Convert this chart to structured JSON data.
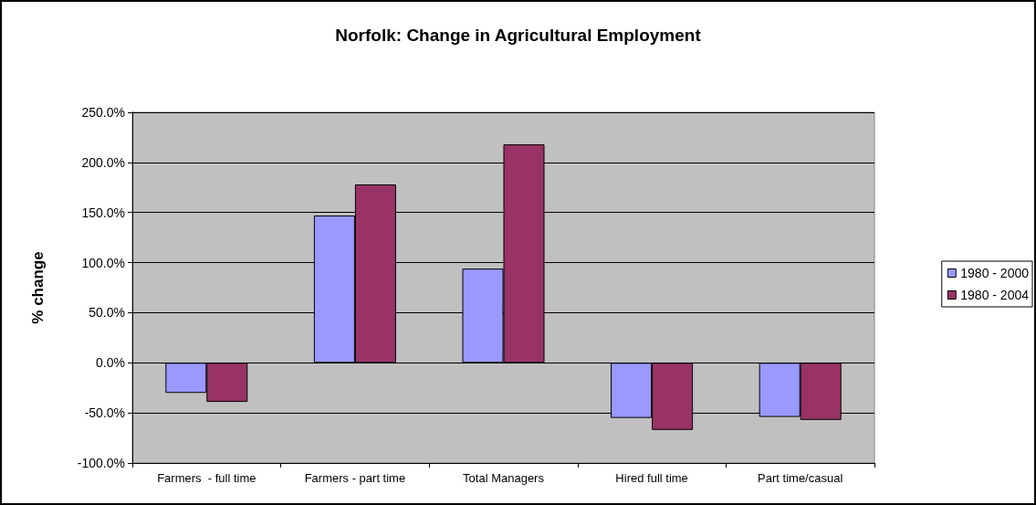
{
  "chart_data": {
    "type": "bar",
    "title": "Norfolk: Change in Agricultural Employment",
    "ylabel": "% change",
    "categories": [
      "Farmers  - full time",
      "Farmers - part time",
      "Total Managers",
      "Hired full time",
      "Part time/casual"
    ],
    "series": [
      {
        "name": "1980 - 2000",
        "color": "#9999ff",
        "values": [
          -30,
          147,
          94,
          -55,
          -54
        ]
      },
      {
        "name": "1980 - 2004",
        "color": "#993366",
        "values": [
          -39,
          178,
          218,
          -67,
          -57
        ]
      }
    ],
    "ylim": [
      -100,
      250
    ],
    "yticks": [
      {
        "value": -100,
        "label": "-100.0%"
      },
      {
        "value": -50,
        "label": "-50.0%"
      },
      {
        "value": 0,
        "label": "0.0%"
      },
      {
        "value": 50,
        "label": "50.0%"
      },
      {
        "value": 100,
        "label": "100.0%"
      },
      {
        "value": 150,
        "label": "150.0%"
      },
      {
        "value": 200,
        "label": "200.0%"
      },
      {
        "value": 250,
        "label": "250.0%"
      }
    ],
    "grid": "y",
    "legend": "right"
  }
}
